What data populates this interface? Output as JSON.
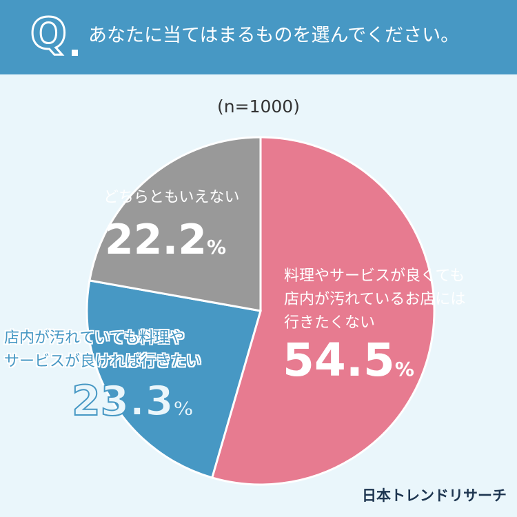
{
  "header": {
    "q_mark": "Q",
    "question": "あなたに当てはまるものを選んでください。"
  },
  "colors": {
    "header": "#4798c4",
    "background": "#eaf6fb"
  },
  "chart_data": {
    "type": "pie",
    "subtitle": "(n=1000)",
    "slices": [
      {
        "label_lines": [
          "料理やサービスが良くても",
          "店内が汚れているお店には",
          "行きたくない"
        ],
        "value": 54.5,
        "display": "54.5",
        "color": "#e77b90"
      },
      {
        "label_lines": [
          "店内が汚れていても料理や",
          "サービスが良ければ行きたい"
        ],
        "value": 23.3,
        "display": "23.3",
        "color": "#4798c4"
      },
      {
        "label_lines": [
          "どちらともいえない"
        ],
        "value": 22.2,
        "display": "22.2",
        "color": "#999999"
      }
    ],
    "unit": "%"
  },
  "brand": "日本トレンドリサーチ"
}
